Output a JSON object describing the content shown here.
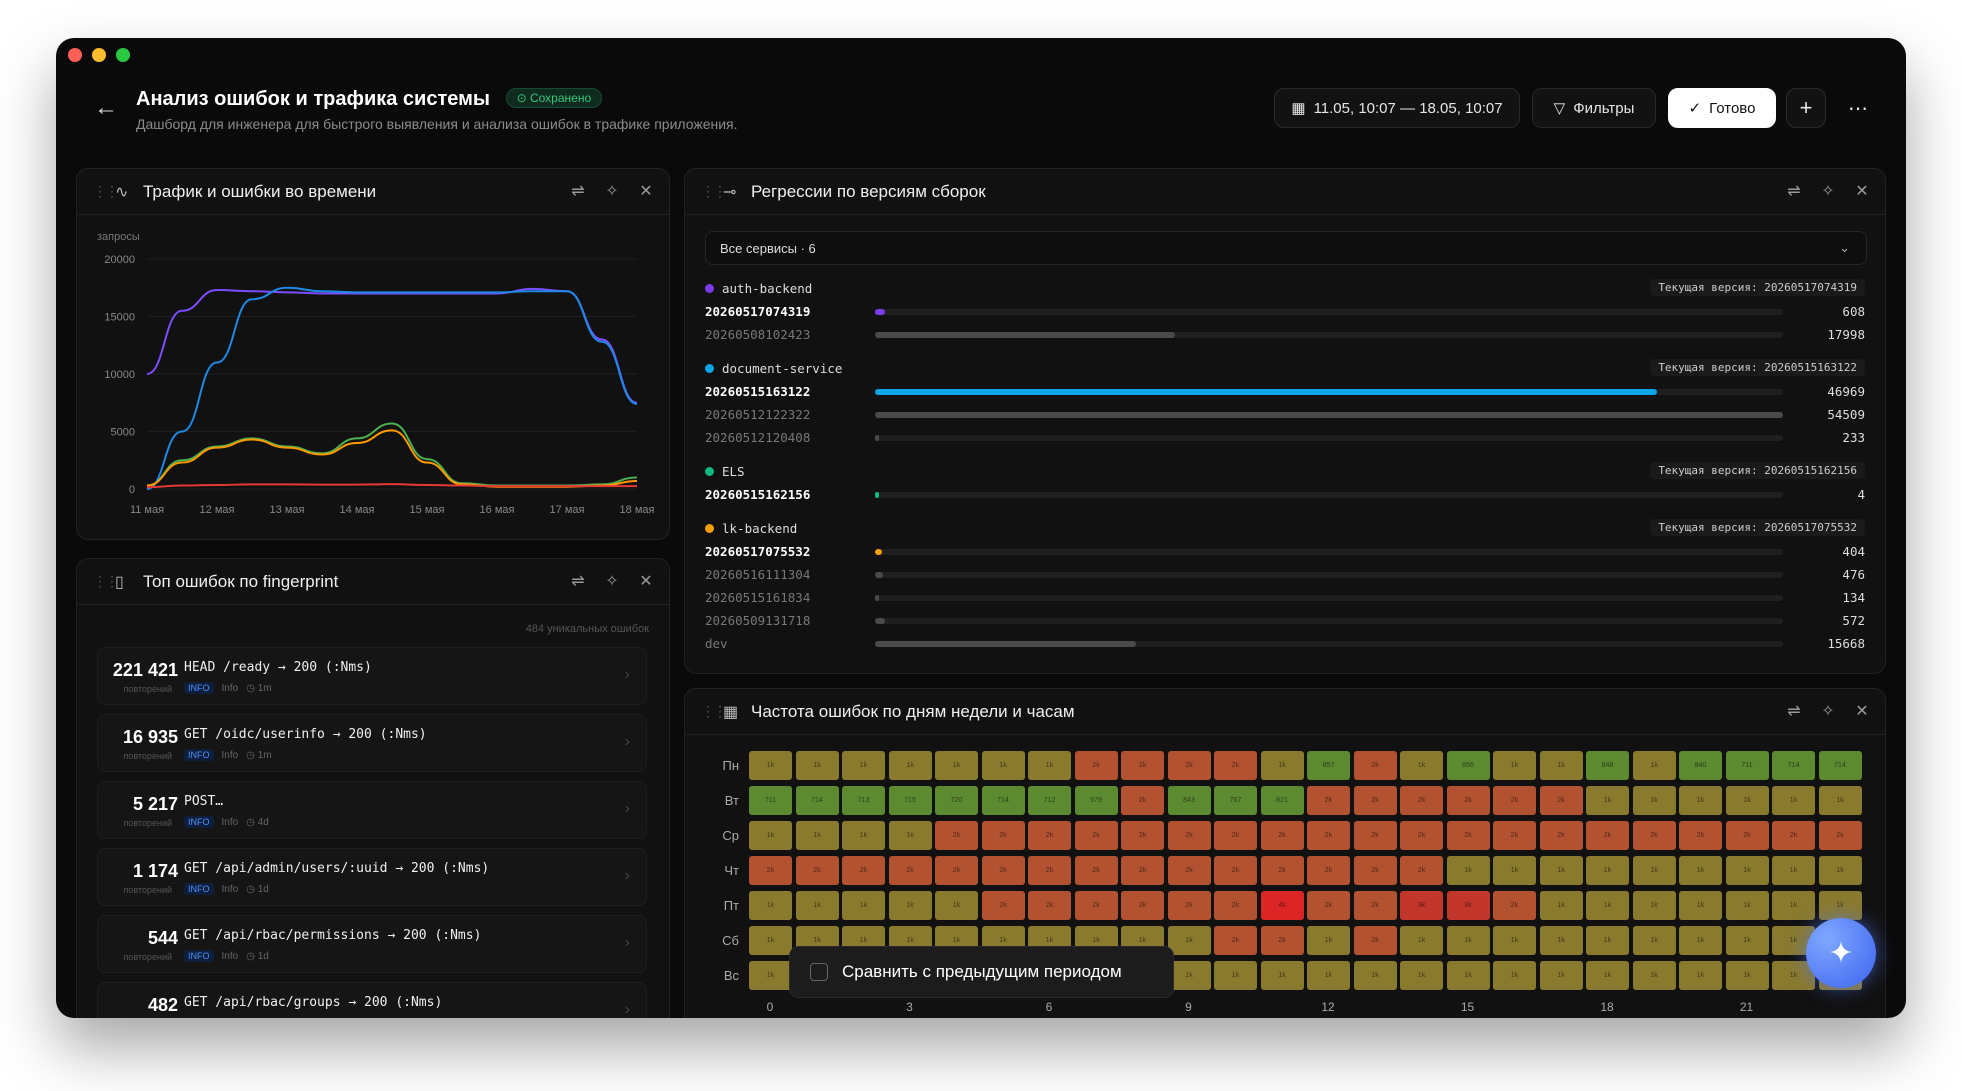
{
  "header": {
    "title": "Анализ ошибок и трафика системы",
    "saved_badge": "Сохранено",
    "subtitle": "Дашборд для инженера для быстрого выявления и анализа ошибок в трафике приложения.",
    "date_range": "11.05, 10:07 — 18.05, 10:07",
    "filters_label": "Фильтры",
    "done_label": "Готово"
  },
  "traffic": {
    "title": "Трафик и ошибки во времени",
    "y_unit": "запросы"
  },
  "chart_data": {
    "type": "line",
    "xlabel": "",
    "ylabel": "запросы",
    "ylim": [
      0,
      20000
    ],
    "yticks": [
      "0",
      "5000",
      "10000",
      "15000",
      "20000"
    ],
    "categories": [
      "11 мая",
      "12 мая",
      "13 мая",
      "14 мая",
      "15 мая",
      "16 мая",
      "17 мая",
      "18 мая"
    ],
    "x": [
      0,
      0.5,
      1,
      1.5,
      2,
      2.5,
      3,
      3.5,
      4,
      4.5,
      5,
      5.5,
      6,
      6.5,
      7
    ],
    "series": [
      {
        "color": "#7c4dff",
        "values": [
          10000,
          15500,
          17300,
          17200,
          17100,
          17000,
          17000,
          17000,
          17000,
          17000,
          17000,
          17400,
          17200,
          13000,
          7500
        ]
      },
      {
        "color": "#1e88e5",
        "values": [
          0,
          5000,
          11000,
          16500,
          17500,
          17200,
          17100,
          17100,
          17100,
          17100,
          17100,
          17200,
          17200,
          12800,
          7400
        ]
      },
      {
        "color": "#4caf50",
        "values": [
          300,
          2500,
          3700,
          4400,
          3700,
          3100,
          4400,
          5700,
          2600,
          500,
          300,
          300,
          300,
          400,
          1000
        ]
      },
      {
        "color": "#ff9800",
        "values": [
          300,
          2300,
          3600,
          4300,
          3600,
          3000,
          4000,
          5100,
          2300,
          400,
          200,
          200,
          200,
          300,
          700
        ]
      },
      {
        "color": "#e53935",
        "values": [
          150,
          300,
          350,
          400,
          400,
          380,
          380,
          420,
          350,
          300,
          250,
          250,
          250,
          250,
          250
        ]
      }
    ]
  },
  "top_errors": {
    "title": "Топ ошибок по fingerprint",
    "unique_count": "484 уникальных ошибок",
    "sub_label": "повторений",
    "items": [
      {
        "count": "221 421",
        "path": "HEAD /ready → 200 (:Nms)",
        "badge": "INFO",
        "level": "Info",
        "age": "1m"
      },
      {
        "count": "16 935",
        "path": "GET /oidc/userinfo → 200 (:Nms)",
        "badge": "INFO",
        "level": "Info",
        "age": "1m"
      },
      {
        "count": "5 217",
        "path": "POST…",
        "badge": "INFO",
        "level": "Info",
        "age": "4d"
      },
      {
        "count": "1 174",
        "path": "GET /api/admin/users/:uuid → 200 (:Nms)",
        "badge": "INFO",
        "level": "Info",
        "age": "1d"
      },
      {
        "count": "544",
        "path": "GET /api/rbac/permissions → 200 (:Nms)",
        "badge": "INFO",
        "level": "Info",
        "age": "1d"
      },
      {
        "count": "482",
        "path": "GET /api/rbac/groups → 200 (:Nms)",
        "badge": "",
        "level": "",
        "age": ""
      }
    ]
  },
  "regressions": {
    "title": "Регрессии по версиям сборок",
    "select": "Все сервисы · 6",
    "current_prefix": "Текущая версия: ",
    "max": 54509,
    "services": [
      {
        "name": "auth-backend",
        "color": "#7c3aed",
        "current": "20260517074319",
        "versions": [
          {
            "v": "20260517074319",
            "val": 608,
            "bold": true
          },
          {
            "v": "20260508102423",
            "val": 17998,
            "bold": false
          }
        ]
      },
      {
        "name": "document-service",
        "color": "#0ea5e9",
        "current": "20260515163122",
        "versions": [
          {
            "v": "20260515163122",
            "val": 46969,
            "bold": true
          },
          {
            "v": "20260512122322",
            "val": 54509,
            "bold": false
          },
          {
            "v": "20260512120408",
            "val": 233,
            "bold": false
          }
        ]
      },
      {
        "name": "ELS",
        "color": "#10b981",
        "current": "20260515162156",
        "versions": [
          {
            "v": "20260515162156",
            "val": 4,
            "bold": true
          }
        ]
      },
      {
        "name": "lk-backend",
        "color": "#f59e0b",
        "current": "20260517075532",
        "versions": [
          {
            "v": "20260517075532",
            "val": 404,
            "bold": true
          },
          {
            "v": "20260516111304",
            "val": 476,
            "bold": false
          },
          {
            "v": "20260515161834",
            "val": 134,
            "bold": false
          },
          {
            "v": "20260509131718",
            "val": 572,
            "bold": false
          },
          {
            "v": "dev",
            "val": 15668,
            "bold": false
          }
        ]
      }
    ]
  },
  "heatmap": {
    "title": "Частота ошибок по дням недели и часам",
    "days": [
      "Пн",
      "Вт",
      "Ср",
      "Чт",
      "Пт",
      "Сб",
      "Вс"
    ],
    "xticks": [
      "0",
      "3",
      "6",
      "9",
      "12",
      "15",
      "18",
      "21"
    ],
    "rows": [
      [
        "1k",
        "1k",
        "1k",
        "1k",
        "1k",
        "1k",
        "1k",
        "2k",
        "2k",
        "2k",
        "2k",
        "1k",
        "857",
        "2k",
        "1k",
        "856",
        "1k",
        "1k",
        "848",
        "1k",
        "840",
        "711",
        "714",
        "714"
      ],
      [
        "711",
        "714",
        "713",
        "715",
        "720",
        "714",
        "712",
        "979",
        "2k",
        "843",
        "767",
        "821",
        "2k",
        "2k",
        "2k",
        "2k",
        "2k",
        "2k",
        "1k",
        "1k",
        "1k",
        "1k",
        "1k",
        "1k"
      ],
      [
        "1k",
        "1k",
        "1k",
        "1k",
        "2k",
        "2k",
        "2k",
        "2k",
        "2k",
        "2k",
        "2k",
        "2k",
        "2k",
        "2k",
        "2k",
        "2k",
        "2k",
        "2k",
        "2k",
        "2k",
        "2k",
        "2k",
        "2k",
        "2k"
      ],
      [
        "2k",
        "2k",
        "2k",
        "2k",
        "2k",
        "2k",
        "2k",
        "2k",
        "2k",
        "2k",
        "2k",
        "2k",
        "2k",
        "2k",
        "2k",
        "1k",
        "1k",
        "1k",
        "1k",
        "1k",
        "1k",
        "1k",
        "1k",
        "1k"
      ],
      [
        "1k",
        "1k",
        "1k",
        "1k",
        "1k",
        "2k",
        "2k",
        "2k",
        "2k",
        "2k",
        "2k",
        "4k",
        "2k",
        "2k",
        "3k",
        "3k",
        "2k",
        "1k",
        "1k",
        "1k",
        "1k",
        "1k",
        "1k",
        "1k"
      ],
      [
        "1k",
        "1k",
        "1k",
        "1k",
        "1k",
        "1k",
        "1k",
        "1k",
        "1k",
        "1k",
        "2k",
        "2k",
        "1k",
        "2k",
        "1k",
        "1k",
        "1k",
        "1k",
        "1k",
        "1k",
        "1k",
        "1k",
        "1k",
        "1k"
      ],
      [
        "1k",
        "1k",
        "1k",
        "1k",
        "1k",
        "1k",
        "1k",
        "1k",
        "1k",
        "1k",
        "1k",
        "1k",
        "1k",
        "1k",
        "1k",
        "1k",
        "1k",
        "1k",
        "1k",
        "1k",
        "1k",
        "1k",
        "1k",
        "1k"
      ]
    ]
  },
  "compare": {
    "label": "Сравнить с предыдущим периодом"
  }
}
